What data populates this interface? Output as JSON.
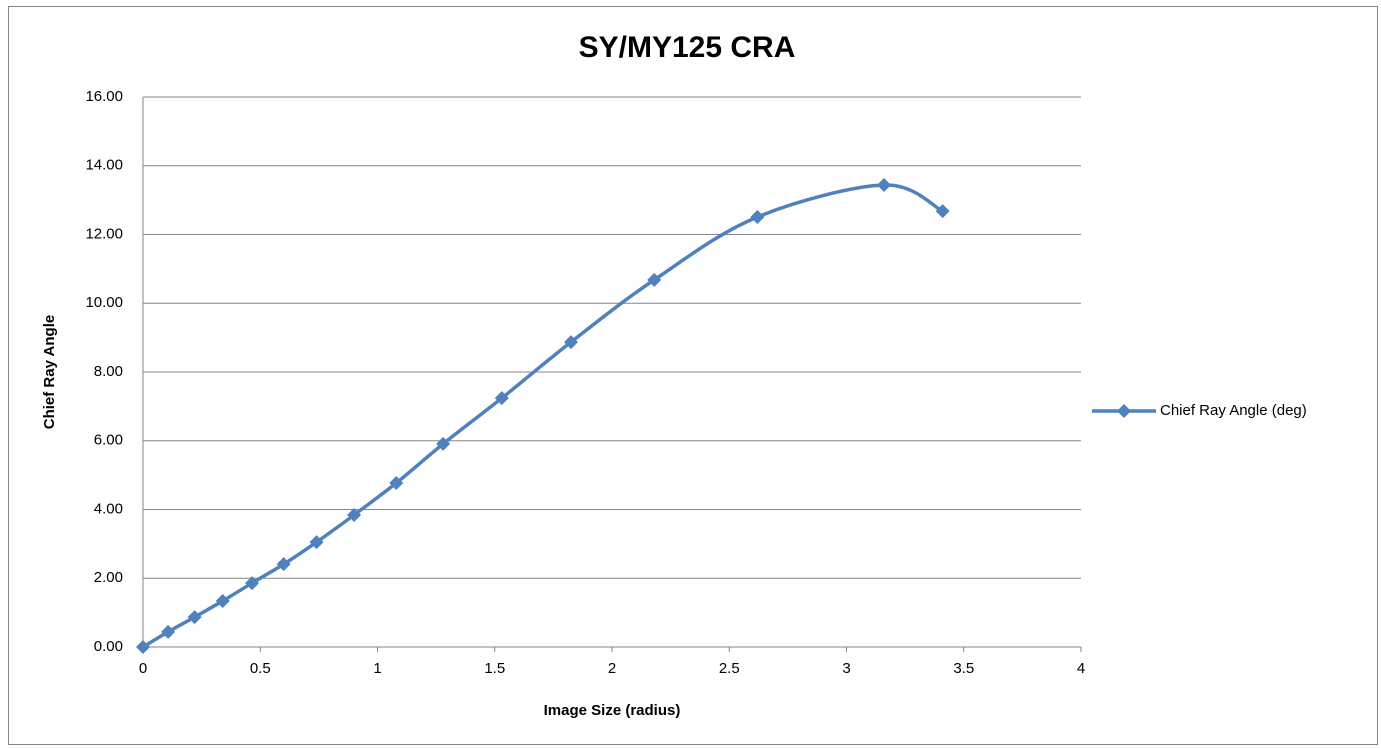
{
  "chart_data": {
    "type": "scatter",
    "title": "SY/MY125 CRA",
    "xlabel": "Image Size (radius)",
    "ylabel": "Chief Ray Angle",
    "series": [
      {
        "name": "Chief Ray Angle (deg)",
        "color": "#4f81bd",
        "x": [
          0,
          0.107,
          0.22,
          0.34,
          0.465,
          0.6,
          0.74,
          0.9,
          1.08,
          1.28,
          1.53,
          1.825,
          2.18,
          2.62,
          3.16,
          3.41
        ],
        "values": [
          0,
          0.44,
          0.87,
          1.34,
          1.86,
          2.41,
          3.05,
          3.84,
          4.77,
          5.91,
          7.24,
          8.87,
          10.68,
          12.51,
          13.44,
          12.68
        ]
      }
    ],
    "xlim": [
      0,
      4
    ],
    "xticks": [
      0,
      0.5,
      1,
      1.5,
      2,
      2.5,
      3,
      3.5,
      4
    ],
    "ylim": [
      0,
      16
    ],
    "yticks": [
      {
        "value": 0,
        "label": "0.00"
      },
      {
        "value": 2,
        "label": "2.00"
      },
      {
        "value": 4,
        "label": "4.00"
      },
      {
        "value": 6,
        "label": "6.00"
      },
      {
        "value": 8,
        "label": "8.00"
      },
      {
        "value": 10,
        "label": "10.00"
      },
      {
        "value": 12,
        "label": "12.00"
      },
      {
        "value": 14,
        "label": "14.00"
      },
      {
        "value": 16,
        "label": "16.00"
      }
    ],
    "grid": true,
    "legend": "right",
    "smooth": true
  }
}
